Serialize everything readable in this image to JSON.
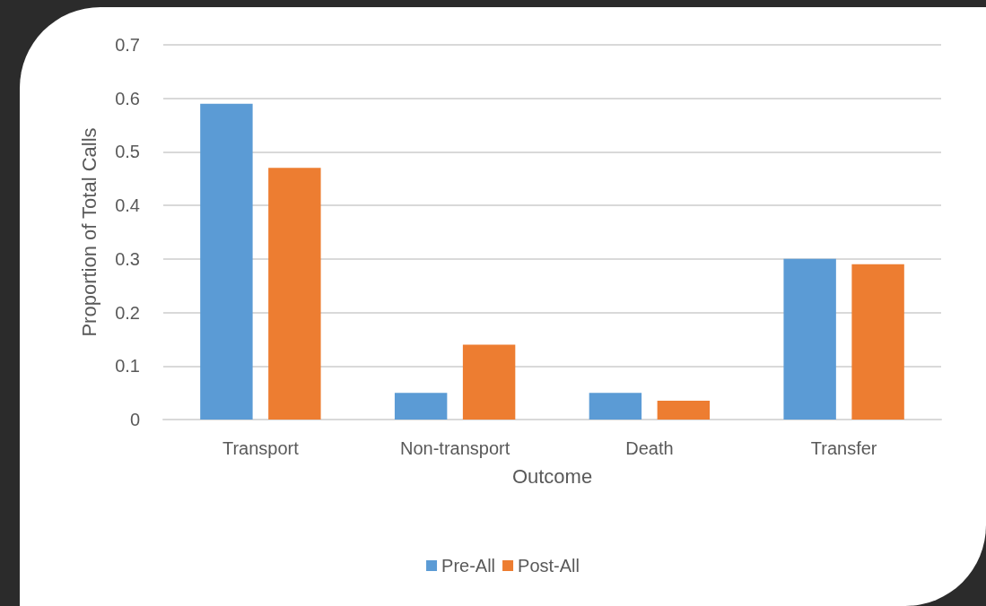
{
  "chart_data": {
    "type": "bar",
    "xlabel": "Outcome",
    "ylabel": "Proportion of Total Calls",
    "categories": [
      "Transport",
      "Non-transport",
      "Death",
      "Transfer"
    ],
    "series": [
      {
        "name": "Pre-All",
        "color": "#5b9bd5",
        "values": [
          0.59,
          0.05,
          0.05,
          0.3
        ]
      },
      {
        "name": "Post-All",
        "color": "#ed7d31",
        "values": [
          0.47,
          0.14,
          0.035,
          0.29
        ]
      }
    ],
    "ylim": [
      0,
      0.7
    ],
    "yticks": [
      0,
      0.1,
      0.2,
      0.3,
      0.4,
      0.5,
      0.6,
      0.7
    ],
    "grid": "y",
    "legend": "bottom"
  }
}
